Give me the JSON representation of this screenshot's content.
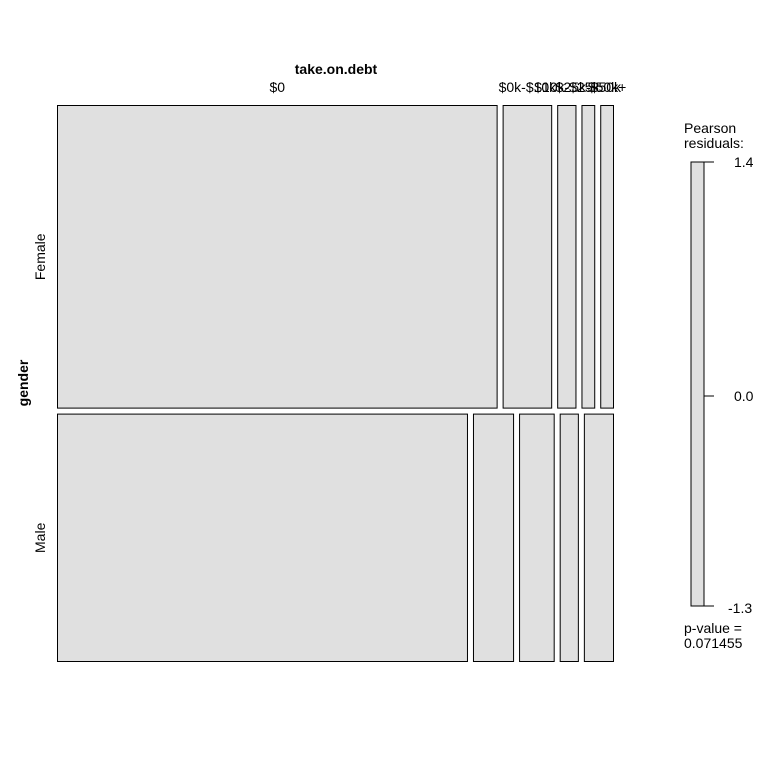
{
  "chart_data": {
    "type": "mosaic",
    "x_variable": "take.on.debt",
    "y_variable": "gender",
    "x_categories": [
      "$0",
      "$0k-$10k",
      "$10k-$25k",
      "$25k-$50k",
      "$50k+"
    ],
    "x_category_labels_top": [
      "$0",
      "$0k-$10k",
      "$10k-$25k",
      "$25k-$50k",
      "$50k+"
    ],
    "y_categories": [
      "Female",
      "Male"
    ],
    "row_proportions": [
      0.55,
      0.45
    ],
    "cell_proportions": [
      [
        0.8,
        0.09,
        0.035,
        0.025,
        0.025
      ],
      [
        0.75,
        0.075,
        0.065,
        0.035,
        0.055
      ]
    ],
    "legend": {
      "title_line1": "Pearson",
      "title_line2": "residuals:",
      "max_label": "1.4",
      "mid_label": "0.0",
      "min_label": "-1.3",
      "range": [
        -1.3,
        1.4
      ]
    },
    "pvalue_line1": "p-value =",
    "pvalue_line2": "0.071455",
    "colors": {
      "cell_fill": "#e0e0e0",
      "cell_stroke": "#000000",
      "legend_fill": "#e0e0e0"
    }
  }
}
